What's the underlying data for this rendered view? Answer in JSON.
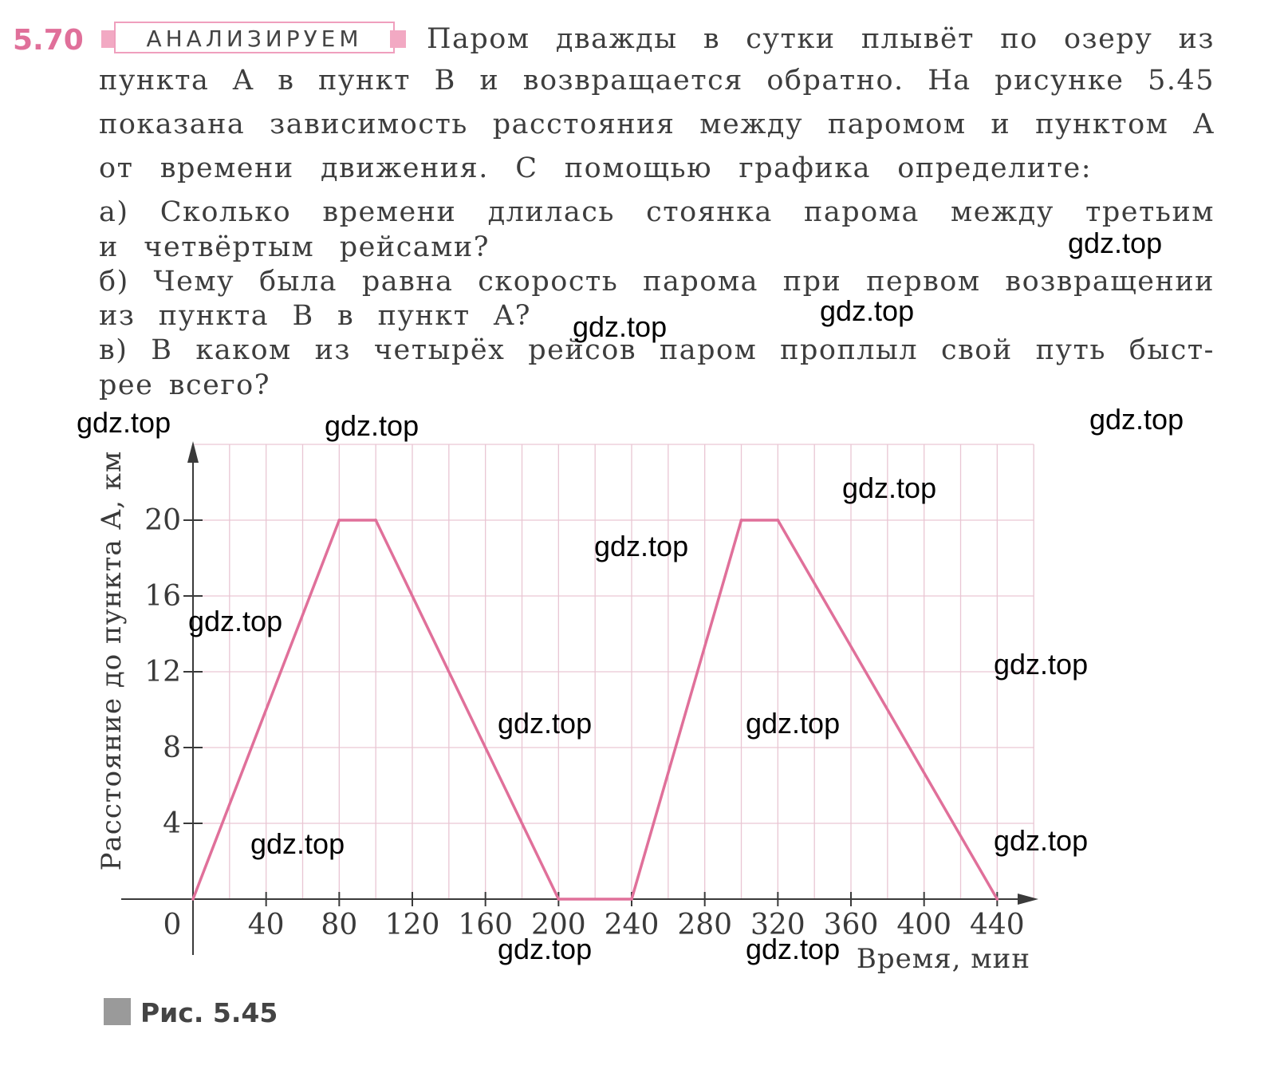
{
  "problem": {
    "number": "5.70",
    "badge": "АНАЛИЗИРУЕМ",
    "line1": "Паром дважды в сутки плывёт по озеру из",
    "line2": "пункта A в пункт B и возвращается обратно. На рисунке 5.45",
    "line3": "показана зависимость расстояния между паромом и пунктом A",
    "line4": "от времени движения. С помощью графика определите:",
    "qa1": "а) Сколько времени длилась стоянка парома между третьим",
    "qa2": "и четвёртым рейсами?",
    "qb1": "б) Чему была равна скорость парома при первом возвращении",
    "qb2": "из пункта B в пункт A?",
    "qc1": "в) В каком из четырёх рейсов паром проплыл свой путь быст-",
    "qc2": "рее всего?"
  },
  "figure_caption": "Рис. 5.45",
  "watermark": "gdz.top",
  "colors": {
    "accent": "#e0709a",
    "line": "#e0709a",
    "grid": "#e9c6d3",
    "axis": "#3a3a3a"
  },
  "chart_data": {
    "type": "line",
    "xlabel": "Время, мин",
    "ylabel": "Расстояние до пункта A, км",
    "xlim": [
      0,
      460
    ],
    "ylim": [
      0,
      24
    ],
    "x_ticks": [
      0,
      40,
      80,
      120,
      160,
      200,
      240,
      280,
      320,
      360,
      400,
      440
    ],
    "y_ticks": [
      4,
      8,
      12,
      16,
      20
    ],
    "grid": true,
    "x": [
      0,
      80,
      100,
      200,
      240,
      300,
      320,
      440
    ],
    "y": [
      0,
      20,
      20,
      0,
      0,
      20,
      20,
      0
    ]
  }
}
